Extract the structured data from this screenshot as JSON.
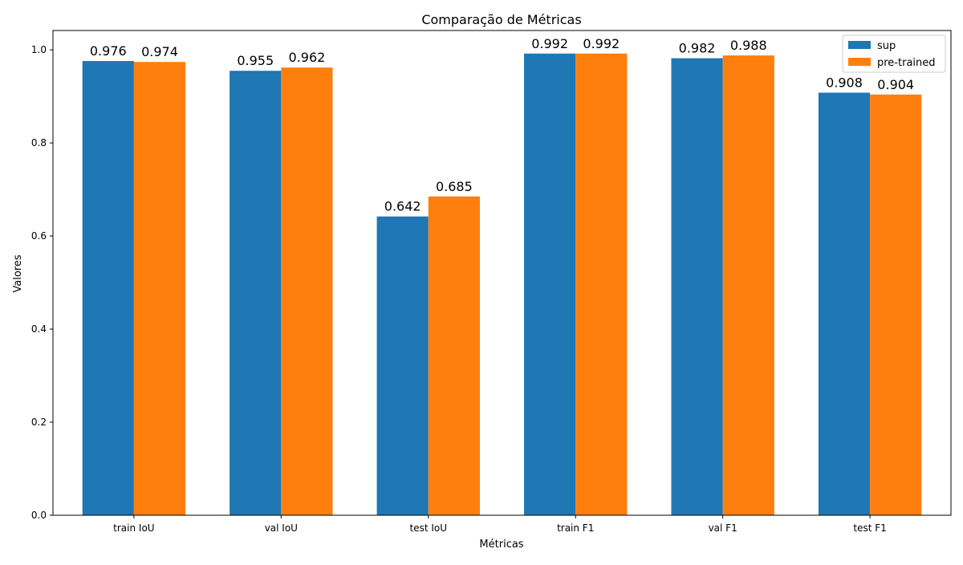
{
  "chart_data": {
    "type": "bar",
    "title": "Comparação de Métricas",
    "xlabel": "Métricas",
    "ylabel": "Valores",
    "categories": [
      "train IoU",
      "val IoU",
      "test IoU",
      "train F1",
      "val F1",
      "test F1"
    ],
    "series": [
      {
        "name": "sup",
        "color": "#1f77b4",
        "values": [
          0.976,
          0.955,
          0.642,
          0.992,
          0.982,
          0.908
        ],
        "labels": [
          "0.976",
          "0.955",
          "0.642",
          "0.992",
          "0.982",
          "0.908"
        ]
      },
      {
        "name": "pre-trained",
        "color": "#ff7f0e",
        "values": [
          0.974,
          0.962,
          0.685,
          0.992,
          0.988,
          0.904
        ],
        "labels": [
          "0.974",
          "0.962",
          "0.685",
          "0.992",
          "0.988",
          "0.904"
        ]
      }
    ],
    "ylim": [
      0,
      1.0416
    ],
    "yticks": [
      0.0,
      0.2,
      0.4,
      0.6,
      0.8,
      1.0
    ],
    "ytick_labels": [
      "0.0",
      "0.2",
      "0.4",
      "0.6",
      "0.8",
      "1.0"
    ],
    "grid": false,
    "legend_position": "top-right"
  }
}
